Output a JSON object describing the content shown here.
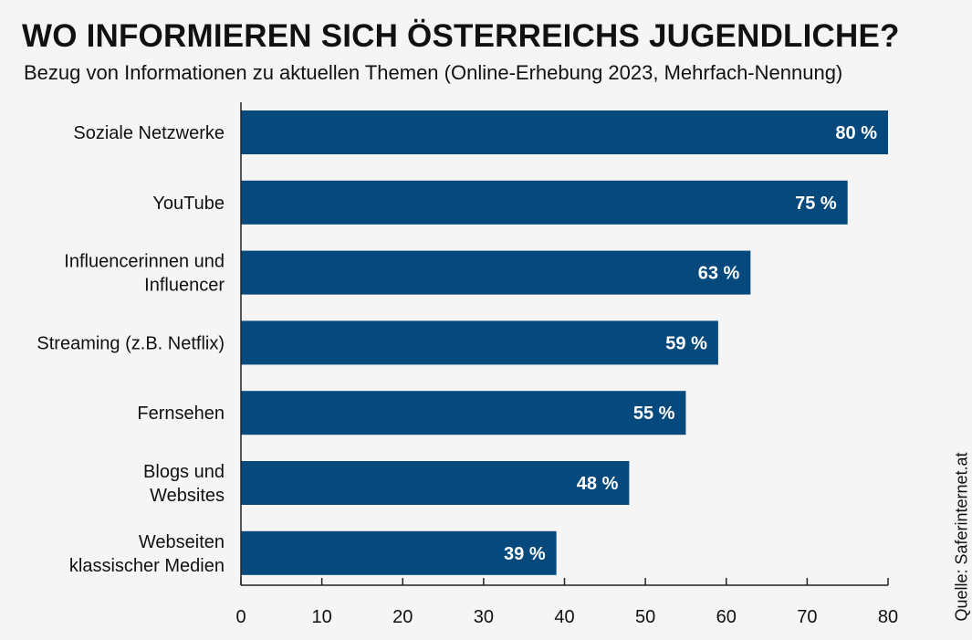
{
  "title": "WO INFORMIEREN SICH ÖSTERREICHS JUGENDLICHE?",
  "subtitle": "Bezug von Informationen zu aktuellen Themen (Online-Erhebung 2023, Mehrfach-Nennung)",
  "source": "Quelle: Saferinternet.at",
  "colors": {
    "bar": "#064a7d",
    "bar_label": "#ffffff",
    "axis": "#222222",
    "background": "#f5f5f5"
  },
  "chart_data": {
    "type": "bar",
    "orientation": "horizontal",
    "title": "WO INFORMIEREN SICH ÖSTERREICHS JUGENDLICHE?",
    "subtitle": "Bezug von Informationen zu aktuellen Themen (Online-Erhebung 2023, Mehrfach-Nennung)",
    "categories": [
      [
        "Soziale Netzwerke"
      ],
      [
        "YouTube"
      ],
      [
        "Influencerinnen und",
        "Influencer"
      ],
      [
        "Streaming (z.B. Netflix)"
      ],
      [
        "Fernsehen"
      ],
      [
        "Blogs und",
        "Websites"
      ],
      [
        "Webseiten",
        "klassischer Medien"
      ]
    ],
    "values": [
      80,
      75,
      63,
      59,
      55,
      48,
      39
    ],
    "value_labels": [
      "80 %",
      "75 %",
      "63 %",
      "59 %",
      "55 %",
      "48 %",
      "39 %"
    ],
    "xlim": [
      0,
      80
    ],
    "xticks": [
      0,
      10,
      20,
      30,
      40,
      50,
      60,
      70,
      80
    ],
    "xlabel": "",
    "ylabel": "",
    "grid": false,
    "legend": "none"
  }
}
